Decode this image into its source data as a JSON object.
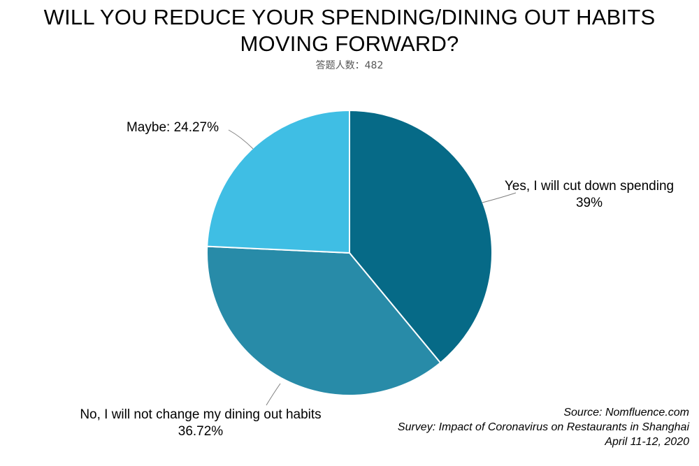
{
  "title_lines": [
    "WILL YOU REDUCE YOUR SPENDING/DINING OUT HABITS",
    "MOVING FORWARD?"
  ],
  "subtitle": "答题人数：482",
  "source_lines": [
    "Source: Nomfluence.com",
    "Survey: Impact of Coronavirus on Restaurants in Shanghai",
    "April 11-12, 2020"
  ],
  "chart_data": {
    "type": "pie",
    "title": "WILL YOU REDUCE YOUR SPENDING/DINING OUT HABITS MOVING FORWARD?",
    "respondents_label": "答题人数：482",
    "slices": [
      {
        "label": "Yes, I will cut down spending",
        "value": 39,
        "value_label": "39%",
        "color": "#066A87"
      },
      {
        "label": "No, I will not change my dining out habits",
        "value": 36.72,
        "value_label": "36.72%",
        "color": "#288BA8"
      },
      {
        "label": "Maybe",
        "value": 24.27,
        "value_label": "Maybe: 24.27%",
        "color": "#3FBEE4"
      }
    ],
    "start_angle": "12 o'clock",
    "direction": "clockwise",
    "slice_border_color": "#ffffff",
    "legend": "none (labels with leader lines)"
  }
}
